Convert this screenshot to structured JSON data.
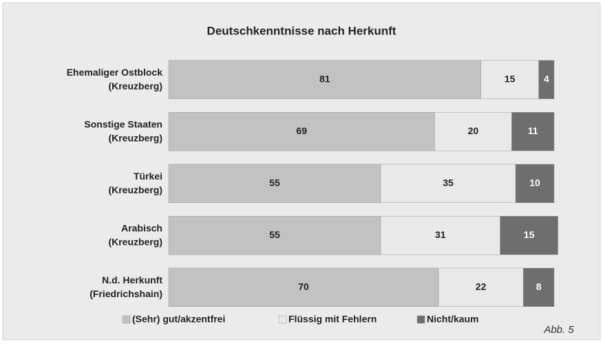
{
  "chart_data": {
    "type": "stacked_barh",
    "title": "Deutschkenntnisse nach Herkunft",
    "categories": [
      "Ehemaliger Ostblock\n(Kreuzberg)",
      "Sonstige Staaten\n(Kreuzberg)",
      "Türkei\n(Kreuzberg)",
      "Arabisch\n(Kreuzberg)",
      "N.d. Herkunft\n(Friedrichshain)"
    ],
    "series": [
      {
        "name": "(Sehr) gut/akzentfrei",
        "color": "#c2c2c2",
        "label_color": "#222222",
        "values": [
          81,
          69,
          55,
          55,
          70
        ]
      },
      {
        "name": "Flüssig mit Fehlern",
        "color": "#e9e9e9",
        "label_color": "#222222",
        "values": [
          15,
          20,
          35,
          31,
          22
        ]
      },
      {
        "name": "Nicht/kaum",
        "color": "#6e6e6e",
        "label_color": "#ffffff",
        "values": [
          4,
          11,
          10,
          15,
          8
        ]
      }
    ],
    "xlim": [
      0,
      100
    ],
    "annotation": "Abb. 5"
  }
}
